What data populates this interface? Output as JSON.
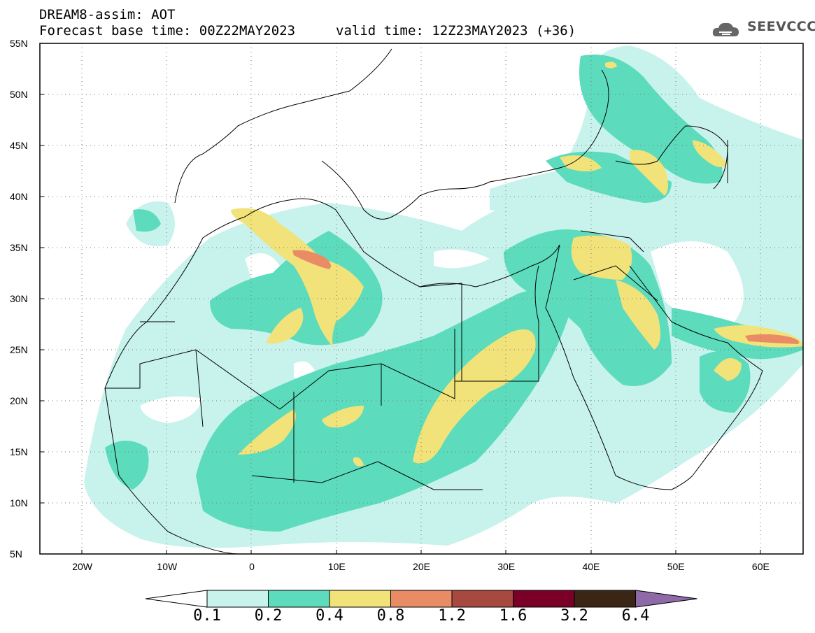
{
  "header": {
    "line1": "DREAM8-assim: AOT",
    "line2": "Forecast base time: 00Z22MAY2023",
    "valid": "valid time: 12Z23MAY2023 (+36)"
  },
  "logo": {
    "text": "SEEVCCC",
    "icon": "cloud-logo-icon"
  },
  "map": {
    "variable": "AOT",
    "projection": "lat-lon",
    "lon_range": [
      -25,
      65
    ],
    "lat_range": [
      5,
      55
    ],
    "lat_ticks": [
      {
        "value": 55,
        "label": "55N"
      },
      {
        "value": 50,
        "label": "50N"
      },
      {
        "value": 45,
        "label": "45N"
      },
      {
        "value": 40,
        "label": "40N"
      },
      {
        "value": 35,
        "label": "35N"
      },
      {
        "value": 30,
        "label": "30N"
      },
      {
        "value": 25,
        "label": "25N"
      },
      {
        "value": 20,
        "label": "20N"
      },
      {
        "value": 15,
        "label": "15N"
      },
      {
        "value": 10,
        "label": "10N"
      },
      {
        "value": 5,
        "label": "5N"
      }
    ],
    "lon_ticks": [
      {
        "value": -20,
        "label": "20W"
      },
      {
        "value": -10,
        "label": "10W"
      },
      {
        "value": 0,
        "label": "0"
      },
      {
        "value": 10,
        "label": "10E"
      },
      {
        "value": 20,
        "label": "20E"
      },
      {
        "value": 30,
        "label": "30E"
      },
      {
        "value": 40,
        "label": "40E"
      },
      {
        "value": 50,
        "label": "50E"
      },
      {
        "value": 60,
        "label": "60E"
      }
    ],
    "grid": "dotted"
  },
  "colorbar": {
    "labels": [
      "0.1",
      "0.2",
      "0.4",
      "0.8",
      "1.2",
      "1.6",
      "3.2",
      "6.4"
    ],
    "colors": [
      "#c8f2ec",
      "#5cdcbc",
      "#f2e27a",
      "#e98c65",
      "#a8493f",
      "#7a0027",
      "#3b2616",
      "#8e6aa8"
    ]
  }
}
